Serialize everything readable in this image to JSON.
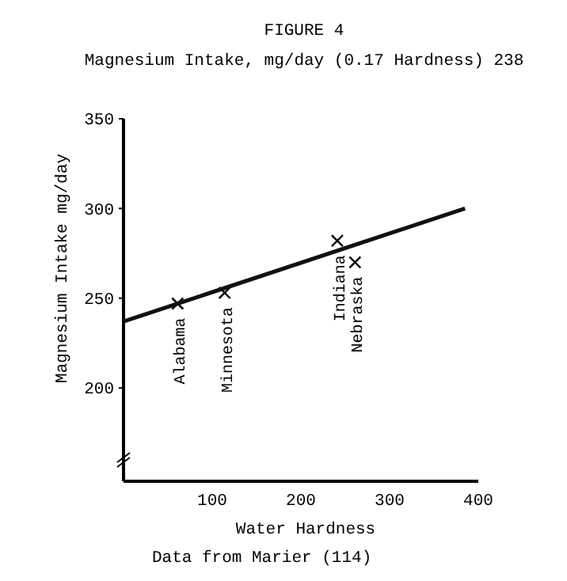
{
  "chart_data": {
    "type": "scatter",
    "title": "FIGURE 4",
    "subtitle": "Magnesium Intake, mg/day (0.17 Hardness) 238",
    "xlabel": "Water Hardness",
    "ylabel": "Magnesium Intake mg/day",
    "xlim": [
      0,
      400
    ],
    "xticks": [
      100,
      200,
      300,
      400
    ],
    "ylim": [
      148,
      350
    ],
    "yticks": [
      200,
      250,
      300,
      350
    ],
    "grid": false,
    "series": [
      {
        "color": "#111111",
        "marker": "cross",
        "x": [
          61,
          114,
          241,
          261
        ],
        "values": [
          247,
          253,
          282,
          270
        ]
      },
      {
        "type": "line",
        "color": "#111111",
        "line_style": "solid",
        "x": [
          0,
          385
        ],
        "values": [
          237,
          300
        ]
      }
    ],
    "annotations": [
      {
        "text": "Alabama",
        "x": 61,
        "y": 247
      },
      {
        "text": "Minnesota",
        "x": 114,
        "y": 253
      },
      {
        "text": "Indiana",
        "x": 241,
        "y": 282
      },
      {
        "text": "Nebraska",
        "x": 261,
        "y": 270
      },
      "Data from Marier (114)"
    ]
  }
}
